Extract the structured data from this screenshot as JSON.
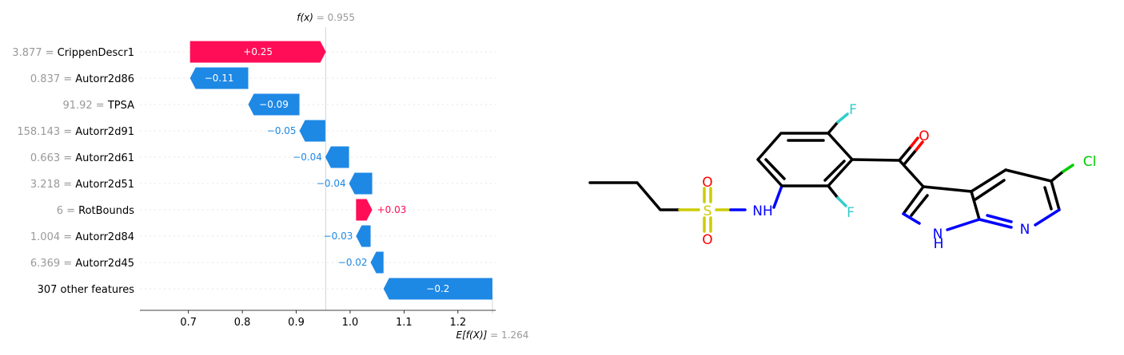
{
  "chart_data": {
    "type": "waterfall",
    "fx_label": "f(x)",
    "fx_value": "= 0.955",
    "ex_label": "E[f(X)]",
    "ex_value": "= 1.264",
    "fx": 0.955,
    "base": 1.264,
    "xlim": [
      0.61,
      1.27
    ],
    "xticks": [
      0.7,
      0.8,
      0.9,
      1.0,
      1.1,
      1.2
    ],
    "xtick_labels": [
      "0.7",
      "0.8",
      "0.9",
      "1.0",
      "1.1",
      "1.2"
    ],
    "colors": {
      "positive": "#ff0d57",
      "negative": "#1e88e5"
    },
    "features": [
      {
        "value_text": "3.877",
        "name": "CrippenDescr1",
        "contribution": 0.25,
        "start": 0.703,
        "end": 0.955,
        "label": "+0.25",
        "label_inside": true
      },
      {
        "value_text": "0.837",
        "name": "Autorr2d86",
        "contribution": -0.11,
        "start": 0.811,
        "end": 0.703,
        "label": "−0.11",
        "label_inside": true
      },
      {
        "value_text": "91.92",
        "name": "TPSA",
        "contribution": -0.09,
        "start": 0.906,
        "end": 0.811,
        "label": "−0.09",
        "label_inside": true
      },
      {
        "value_text": "158.143",
        "name": "Autorr2d91",
        "contribution": -0.05,
        "start": 0.954,
        "end": 0.906,
        "label": "−0.05",
        "label_inside": false
      },
      {
        "value_text": "0.663",
        "name": "Autorr2d61",
        "contribution": -0.04,
        "start": 0.998,
        "end": 0.954,
        "label": "−0.04",
        "label_inside": false
      },
      {
        "value_text": "3.218",
        "name": "Autorr2d51",
        "contribution": -0.04,
        "start": 1.041,
        "end": 0.998,
        "label": "−0.04",
        "label_inside": false
      },
      {
        "value_text": "6",
        "name": "RotBounds",
        "contribution": 0.03,
        "start": 1.011,
        "end": 1.041,
        "label": "+0.03",
        "label_inside": false
      },
      {
        "value_text": "1.004",
        "name": "Autorr2d84",
        "contribution": -0.03,
        "start": 1.038,
        "end": 1.011,
        "label": "−0.03",
        "label_inside": false
      },
      {
        "value_text": "6.369",
        "name": "Autorr2d45",
        "contribution": -0.02,
        "start": 1.062,
        "end": 1.038,
        "label": "−0.02",
        "label_inside": false
      },
      {
        "value_text": "",
        "name": "307 other features",
        "contribution": -0.2,
        "start": 1.264,
        "end": 1.062,
        "label": "−0.2",
        "label_inside": true
      }
    ]
  },
  "molecule": {
    "atoms": {
      "F1": "F",
      "F2": "F",
      "O1": "O",
      "O2": "O",
      "O3": "O",
      "S": "S",
      "N1": "NH",
      "N2": "N",
      "N3": "N",
      "H": "H",
      "Cl": "Cl"
    },
    "colors": {
      "F": "#33cccc",
      "O": "#ff0000",
      "S": "#cccc00",
      "N": "#0000ff",
      "Cl": "#00cc00",
      "bond": "#000000"
    }
  }
}
